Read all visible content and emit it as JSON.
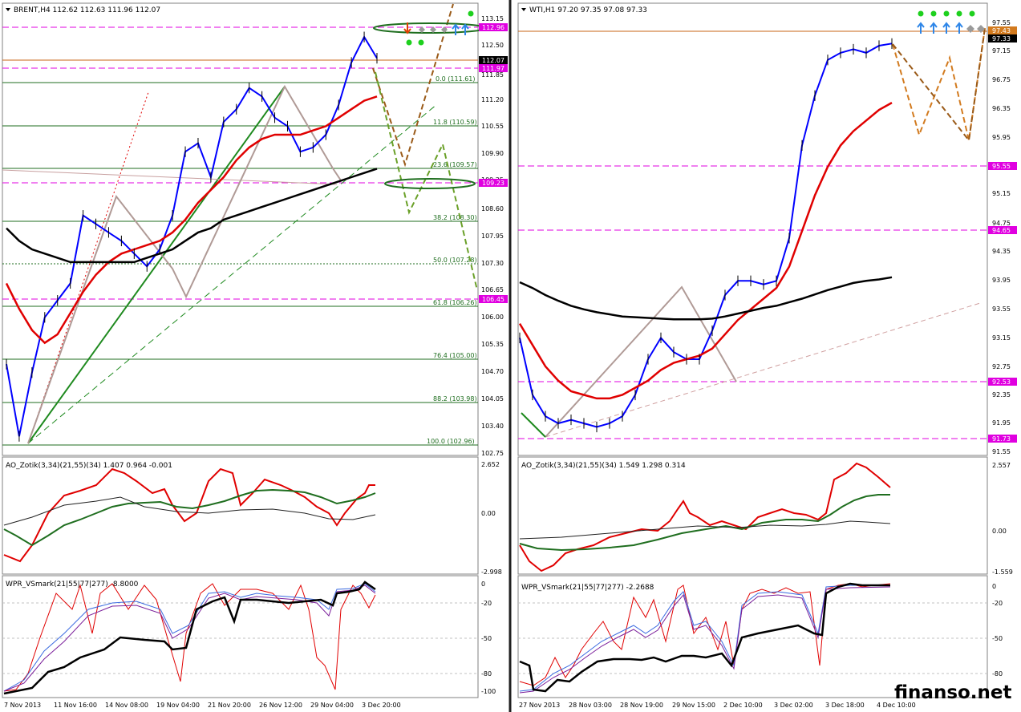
{
  "colors": {
    "frame": "#808080",
    "grid_fib": "#1f6e1f",
    "magenta": "#e000e0",
    "orange_level": "#c86414",
    "blue_ma": "#0000ff",
    "red_ma": "#e00000",
    "darkred_ma": "#a05050",
    "black_ma": "#000000",
    "green_ma": "#006400",
    "candles": "#000000",
    "forecast_brown": "#9a5a18",
    "forecast_orange": "#d27a1e",
    "forecast_green": "#6aa028",
    "dot_green": "#1ed01e",
    "arrow_blue": "#2e86e8"
  },
  "watermark": "finanso.net",
  "charts": [
    {
      "name": "brent",
      "header": "BRENT,H4  112.62 112.63 111.96 112.07",
      "price_axis": [
        "113.15",
        "112.50",
        "111.85",
        "111.20",
        "110.55",
        "109.90",
        "109.25",
        "108.60",
        "107.95",
        "107.30",
        "106.65",
        "106.00",
        "105.35",
        "104.70",
        "104.05",
        "103.40",
        "102.75"
      ],
      "price_tags": [
        {
          "label": "112.96",
          "value": 112.96,
          "color": "magenta"
        },
        {
          "label": "112.07",
          "value": 112.07,
          "color": "black"
        },
        {
          "label": "111.97",
          "value": 111.97,
          "color": "magenta"
        },
        {
          "label": "109.23",
          "value": 109.23,
          "color": "magenta"
        },
        {
          "label": "106.45",
          "value": 106.45,
          "color": "magenta"
        }
      ],
      "fib_levels": [
        {
          "label": "0.0 (111.61)",
          "value": 111.61
        },
        {
          "label": "11.8 (110.59)",
          "value": 110.59
        },
        {
          "label": "23.6 (109.57)",
          "value": 109.57
        },
        {
          "label": "38.2 (108.30)",
          "value": 108.3
        },
        {
          "label": "50.0 (107.28)",
          "value": 107.28
        },
        {
          "label": "61.8 (106.26)",
          "value": 106.26
        },
        {
          "label": "76.4 (105.00)",
          "value": 105.0
        },
        {
          "label": "88.2 (103.98)",
          "value": 103.98
        },
        {
          "label": "100.0 (102.96)",
          "value": 102.96
        }
      ],
      "time_axis": [
        "7 Nov 2013",
        "11 Nov 16:00",
        "14 Nov 08:00",
        "19 Nov 04:00",
        "21 Nov 20:00",
        "26 Nov 12:00",
        "29 Nov 04:00",
        "3 Dec 20:00"
      ],
      "ao_header": "AO_Zotik(3,34)(21,55)(34) 1.407 0.964 -0.001",
      "ao_axis": [
        "2.652",
        "0.00",
        "-2.998"
      ],
      "wpr_header": "WPR_VSmark(21|55|77|277) -8.8000",
      "wpr_axis": [
        "0",
        "-20",
        "-50",
        "-80",
        "-100"
      ]
    },
    {
      "name": "wti",
      "header": "WTI,H1  97.20 97.35 97.08 97.33",
      "price_axis": [
        "97.55",
        "97.15",
        "96.75",
        "96.35",
        "95.95",
        "95.55",
        "95.15",
        "94.75",
        "94.35",
        "93.95",
        "93.55",
        "93.15",
        "92.75",
        "92.35",
        "91.95",
        "91.55"
      ],
      "price_tags": [
        {
          "label": "97.43",
          "value": 97.43,
          "color": "orange"
        },
        {
          "label": "97.33",
          "value": 97.33,
          "color": "black"
        },
        {
          "label": "95.55",
          "value": 95.55,
          "color": "magenta"
        },
        {
          "label": "94.65",
          "value": 94.65,
          "color": "magenta"
        },
        {
          "label": "92.53",
          "value": 92.53,
          "color": "magenta"
        },
        {
          "label": "91.73",
          "value": 91.73,
          "color": "magenta"
        }
      ],
      "time_axis": [
        "27 Nov 2013",
        "28 Nov 03:00",
        "28 Nov 19:00",
        "29 Nov 15:00",
        "2 Dec 10:00",
        "3 Dec 02:00",
        "3 Dec 18:00",
        "4 Dec 10:00"
      ],
      "ao_header": "AO_Zotik(3,34)(21,55)(34) 1.549 1.298 0.314",
      "ao_axis": [
        "2.557",
        "0.00",
        "-1.559"
      ],
      "wpr_header": "WPR_VSmark(21|55|77|277) -2.2688",
      "wpr_axis": [
        "0",
        "-20",
        "-50",
        "-80"
      ]
    }
  ],
  "chart_data": [
    {
      "type": "line",
      "title": "BRENT,H4  112.62 112.63 111.96 112.07",
      "ylim": [
        102.75,
        113.15
      ],
      "x": [
        0,
        4,
        8,
        12,
        16,
        20,
        24,
        28,
        32,
        36,
        40,
        44,
        48,
        52,
        56,
        60,
        64,
        68,
        72,
        76,
        80,
        84,
        88,
        92,
        96,
        100,
        104,
        108,
        112,
        116
      ],
      "series": [
        {
          "name": "close",
          "values": [
            104.9,
            103.2,
            104.7,
            106.0,
            106.4,
            106.8,
            108.4,
            108.2,
            108.0,
            107.8,
            107.5,
            107.2,
            107.6,
            108.4,
            109.9,
            110.1,
            109.3,
            110.6,
            110.9,
            111.4,
            111.2,
            110.7,
            110.5,
            109.9,
            110.0,
            110.3,
            111.0,
            112.0,
            112.6,
            112.1
          ]
        },
        {
          "values": [
            106.8,
            106.2,
            105.7,
            105.4,
            105.6,
            106.1,
            106.6,
            107.0,
            107.3,
            107.5,
            107.6,
            107.7,
            107.8,
            108.0,
            108.3,
            108.7,
            109.0,
            109.3,
            109.7,
            110.0,
            110.2,
            110.3,
            110.3,
            110.3,
            110.4,
            110.5,
            110.7,
            110.9,
            111.1,
            111.2
          ]
        },
        {
          "values": [
            108.1,
            107.8,
            107.6,
            107.5,
            107.4,
            107.3,
            107.3,
            107.3,
            107.3,
            107.3,
            107.3,
            107.4,
            107.5,
            107.6,
            107.8,
            108.0,
            108.1,
            108.3,
            108.4,
            108.5,
            108.6,
            108.7,
            108.8,
            108.9,
            109.0,
            109.1,
            109.2,
            109.3,
            109.4,
            109.5
          ]
        }
      ]
    },
    {
      "type": "line",
      "title": "WTI,H1  97.20 97.35 97.08 97.33",
      "ylim": [
        91.55,
        97.75
      ],
      "x": [
        0,
        4,
        8,
        12,
        16,
        20,
        24,
        28,
        32,
        36,
        40,
        44,
        48,
        52,
        56,
        60,
        64,
        68,
        72,
        76,
        80,
        84,
        88,
        92,
        96,
        100,
        104,
        108,
        112,
        116
      ],
      "series": [
        {
          "name": "close",
          "values": [
            93.2,
            92.4,
            92.1,
            92.0,
            92.05,
            92.0,
            91.95,
            92.0,
            92.1,
            92.4,
            92.9,
            93.2,
            93.0,
            92.9,
            92.9,
            93.3,
            93.8,
            94.0,
            94.0,
            93.95,
            94.0,
            94.6,
            95.9,
            96.6,
            97.1,
            97.2,
            97.25,
            97.2,
            97.3,
            97.33
          ]
        },
        {
          "values": [
            93.4,
            93.1,
            92.8,
            92.6,
            92.45,
            92.4,
            92.35,
            92.35,
            92.4,
            92.5,
            92.6,
            92.75,
            92.85,
            92.9,
            92.95,
            93.05,
            93.25,
            93.45,
            93.6,
            93.75,
            93.9,
            94.2,
            94.7,
            95.2,
            95.6,
            95.9,
            96.1,
            96.25,
            96.4,
            96.5
          ]
        },
        {
          "values": [
            93.98,
            93.9,
            93.8,
            93.72,
            93.65,
            93.6,
            93.56,
            93.53,
            93.5,
            93.49,
            93.48,
            93.47,
            93.46,
            93.46,
            93.46,
            93.47,
            93.5,
            93.54,
            93.58,
            93.62,
            93.65,
            93.7,
            93.75,
            93.81,
            93.87,
            93.92,
            93.97,
            94.0,
            94.02,
            94.05
          ]
        }
      ]
    }
  ]
}
